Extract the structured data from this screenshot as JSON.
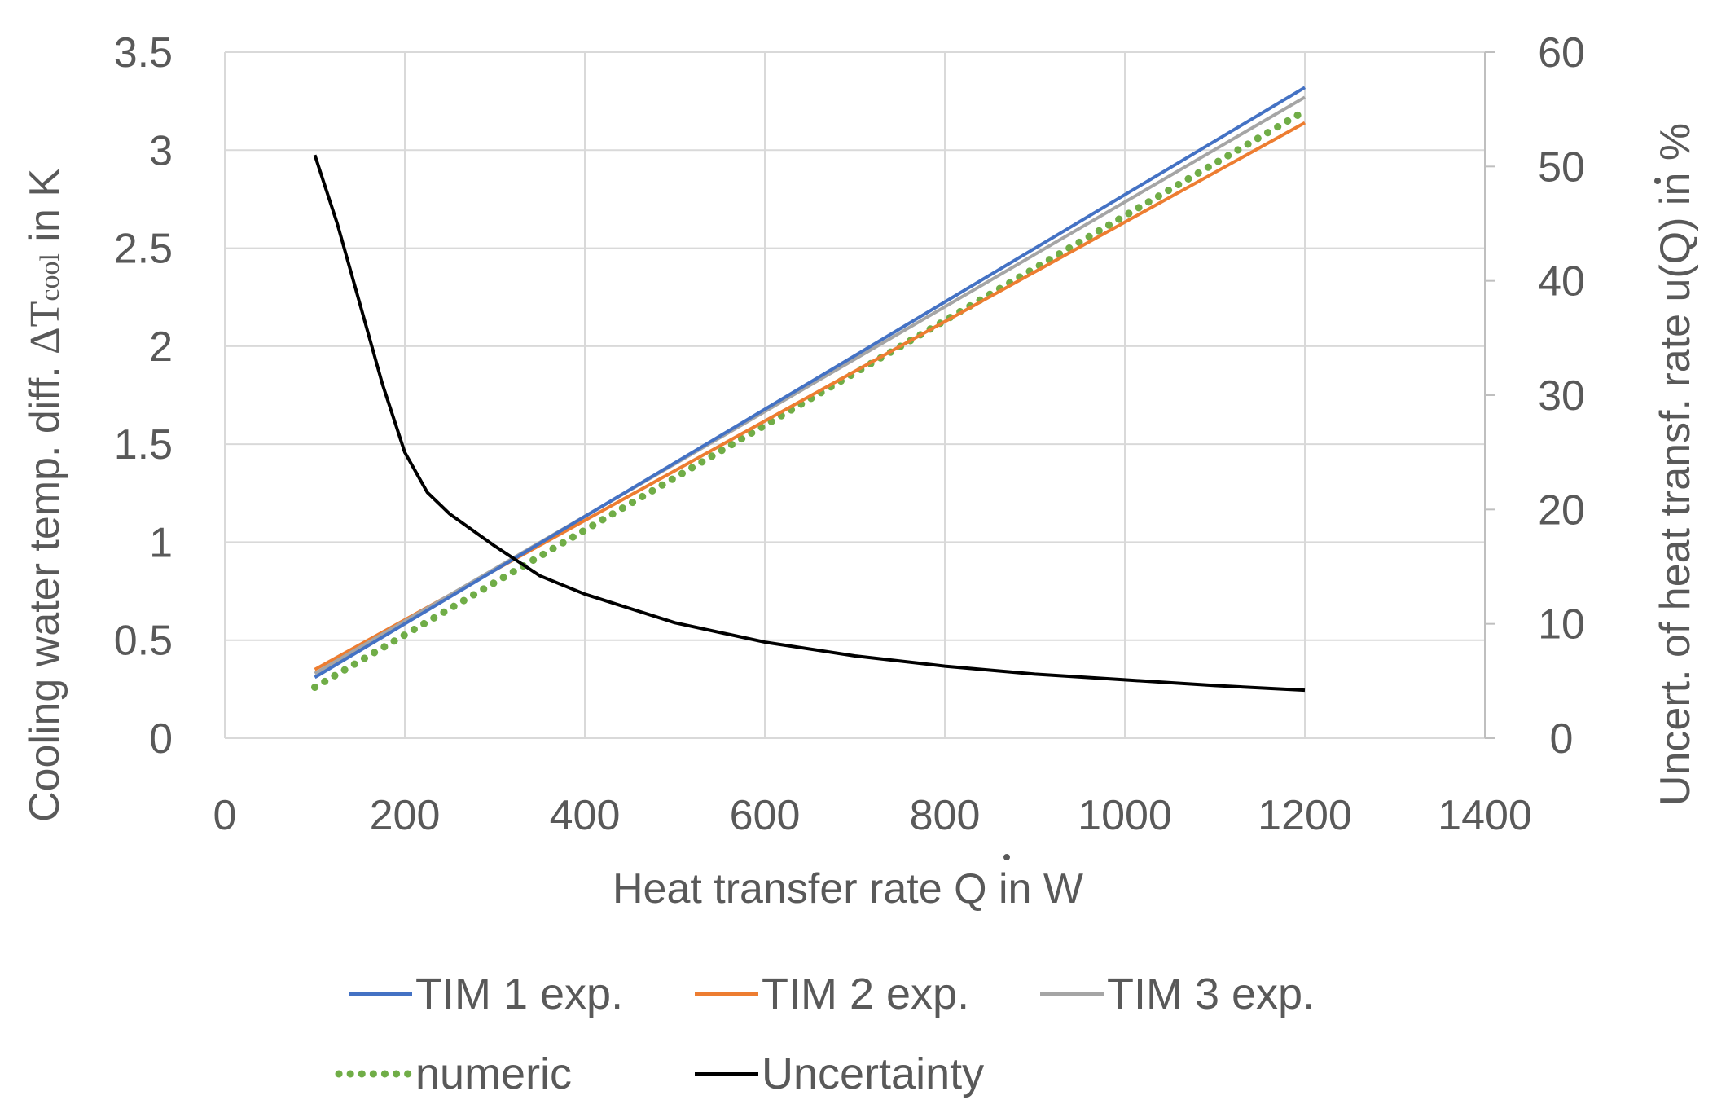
{
  "chart_data": {
    "type": "line",
    "xlabel": "Heat transfer rate Q̇ in W",
    "xlabel_parts": {
      "pre": "Heat transfer rate ",
      "sym": "Q",
      "post": " in W"
    },
    "ylabel_left": "Cooling water temp. diff.  ΔTcool in K",
    "ylabel_left_parts": {
      "pre": "Cooling water temp. diff.  ",
      "delta": "Δ",
      "T": "T",
      "sub": "cool",
      "post": " in K"
    },
    "ylabel_right": "Uncert. of heat transf. rate u(Q̇) in %",
    "ylabel_right_parts": {
      "pre": "Uncert. of heat transf. rate u(",
      "sym": "Q",
      "post": ") in %"
    },
    "xlim": [
      0,
      1400
    ],
    "ylim_left": [
      0,
      3.5
    ],
    "ylim_right": [
      0,
      60
    ],
    "x_ticks": [
      "0",
      "200",
      "400",
      "600",
      "800",
      "1000",
      "1200",
      "1400"
    ],
    "x_tick_values": [
      0,
      200,
      400,
      600,
      800,
      1000,
      1200,
      1400
    ],
    "y_left_ticks": [
      "0",
      "0.5",
      "1",
      "1.5",
      "2",
      "2.5",
      "3",
      "3.5"
    ],
    "y_left_tick_values": [
      0,
      0.5,
      1,
      1.5,
      2,
      2.5,
      3,
      3.5
    ],
    "y_right_ticks": [
      "0",
      "10",
      "20",
      "30",
      "40",
      "50",
      "60"
    ],
    "y_right_tick_values": [
      0,
      10,
      20,
      30,
      40,
      50,
      60
    ],
    "grid": true,
    "legend_position": "bottom",
    "series": [
      {
        "name": "TIM 1 exp.",
        "axis": "left",
        "style": "solid",
        "color": "#4472C4",
        "x": [
          100,
          1200
        ],
        "y": [
          0.31,
          3.32
        ]
      },
      {
        "name": "TIM 2 exp.",
        "axis": "left",
        "style": "solid",
        "color": "#ED7D31",
        "x": [
          100,
          1200
        ],
        "y": [
          0.35,
          3.14
        ]
      },
      {
        "name": "TIM 3 exp.",
        "axis": "left",
        "style": "solid",
        "color": "#A5A5A5",
        "x": [
          100,
          1200
        ],
        "y": [
          0.33,
          3.27
        ]
      },
      {
        "name": "numeric",
        "axis": "left",
        "style": "dotted",
        "color": "#70AD47",
        "x": [
          100,
          1200
        ],
        "y": [
          0.26,
          3.2
        ]
      },
      {
        "name": "Uncertainty",
        "axis": "right",
        "style": "solid",
        "color": "#000000",
        "x": [
          100,
          125,
          150,
          175,
          200,
          225,
          250,
          300,
          350,
          400,
          500,
          600,
          700,
          800,
          900,
          1000,
          1100,
          1200
        ],
        "y": [
          51,
          45,
          38,
          31,
          25,
          21.5,
          19.6,
          16.8,
          14.2,
          12.6,
          10.1,
          8.4,
          7.2,
          6.3,
          5.6,
          5.1,
          4.6,
          4.2
        ]
      }
    ]
  }
}
